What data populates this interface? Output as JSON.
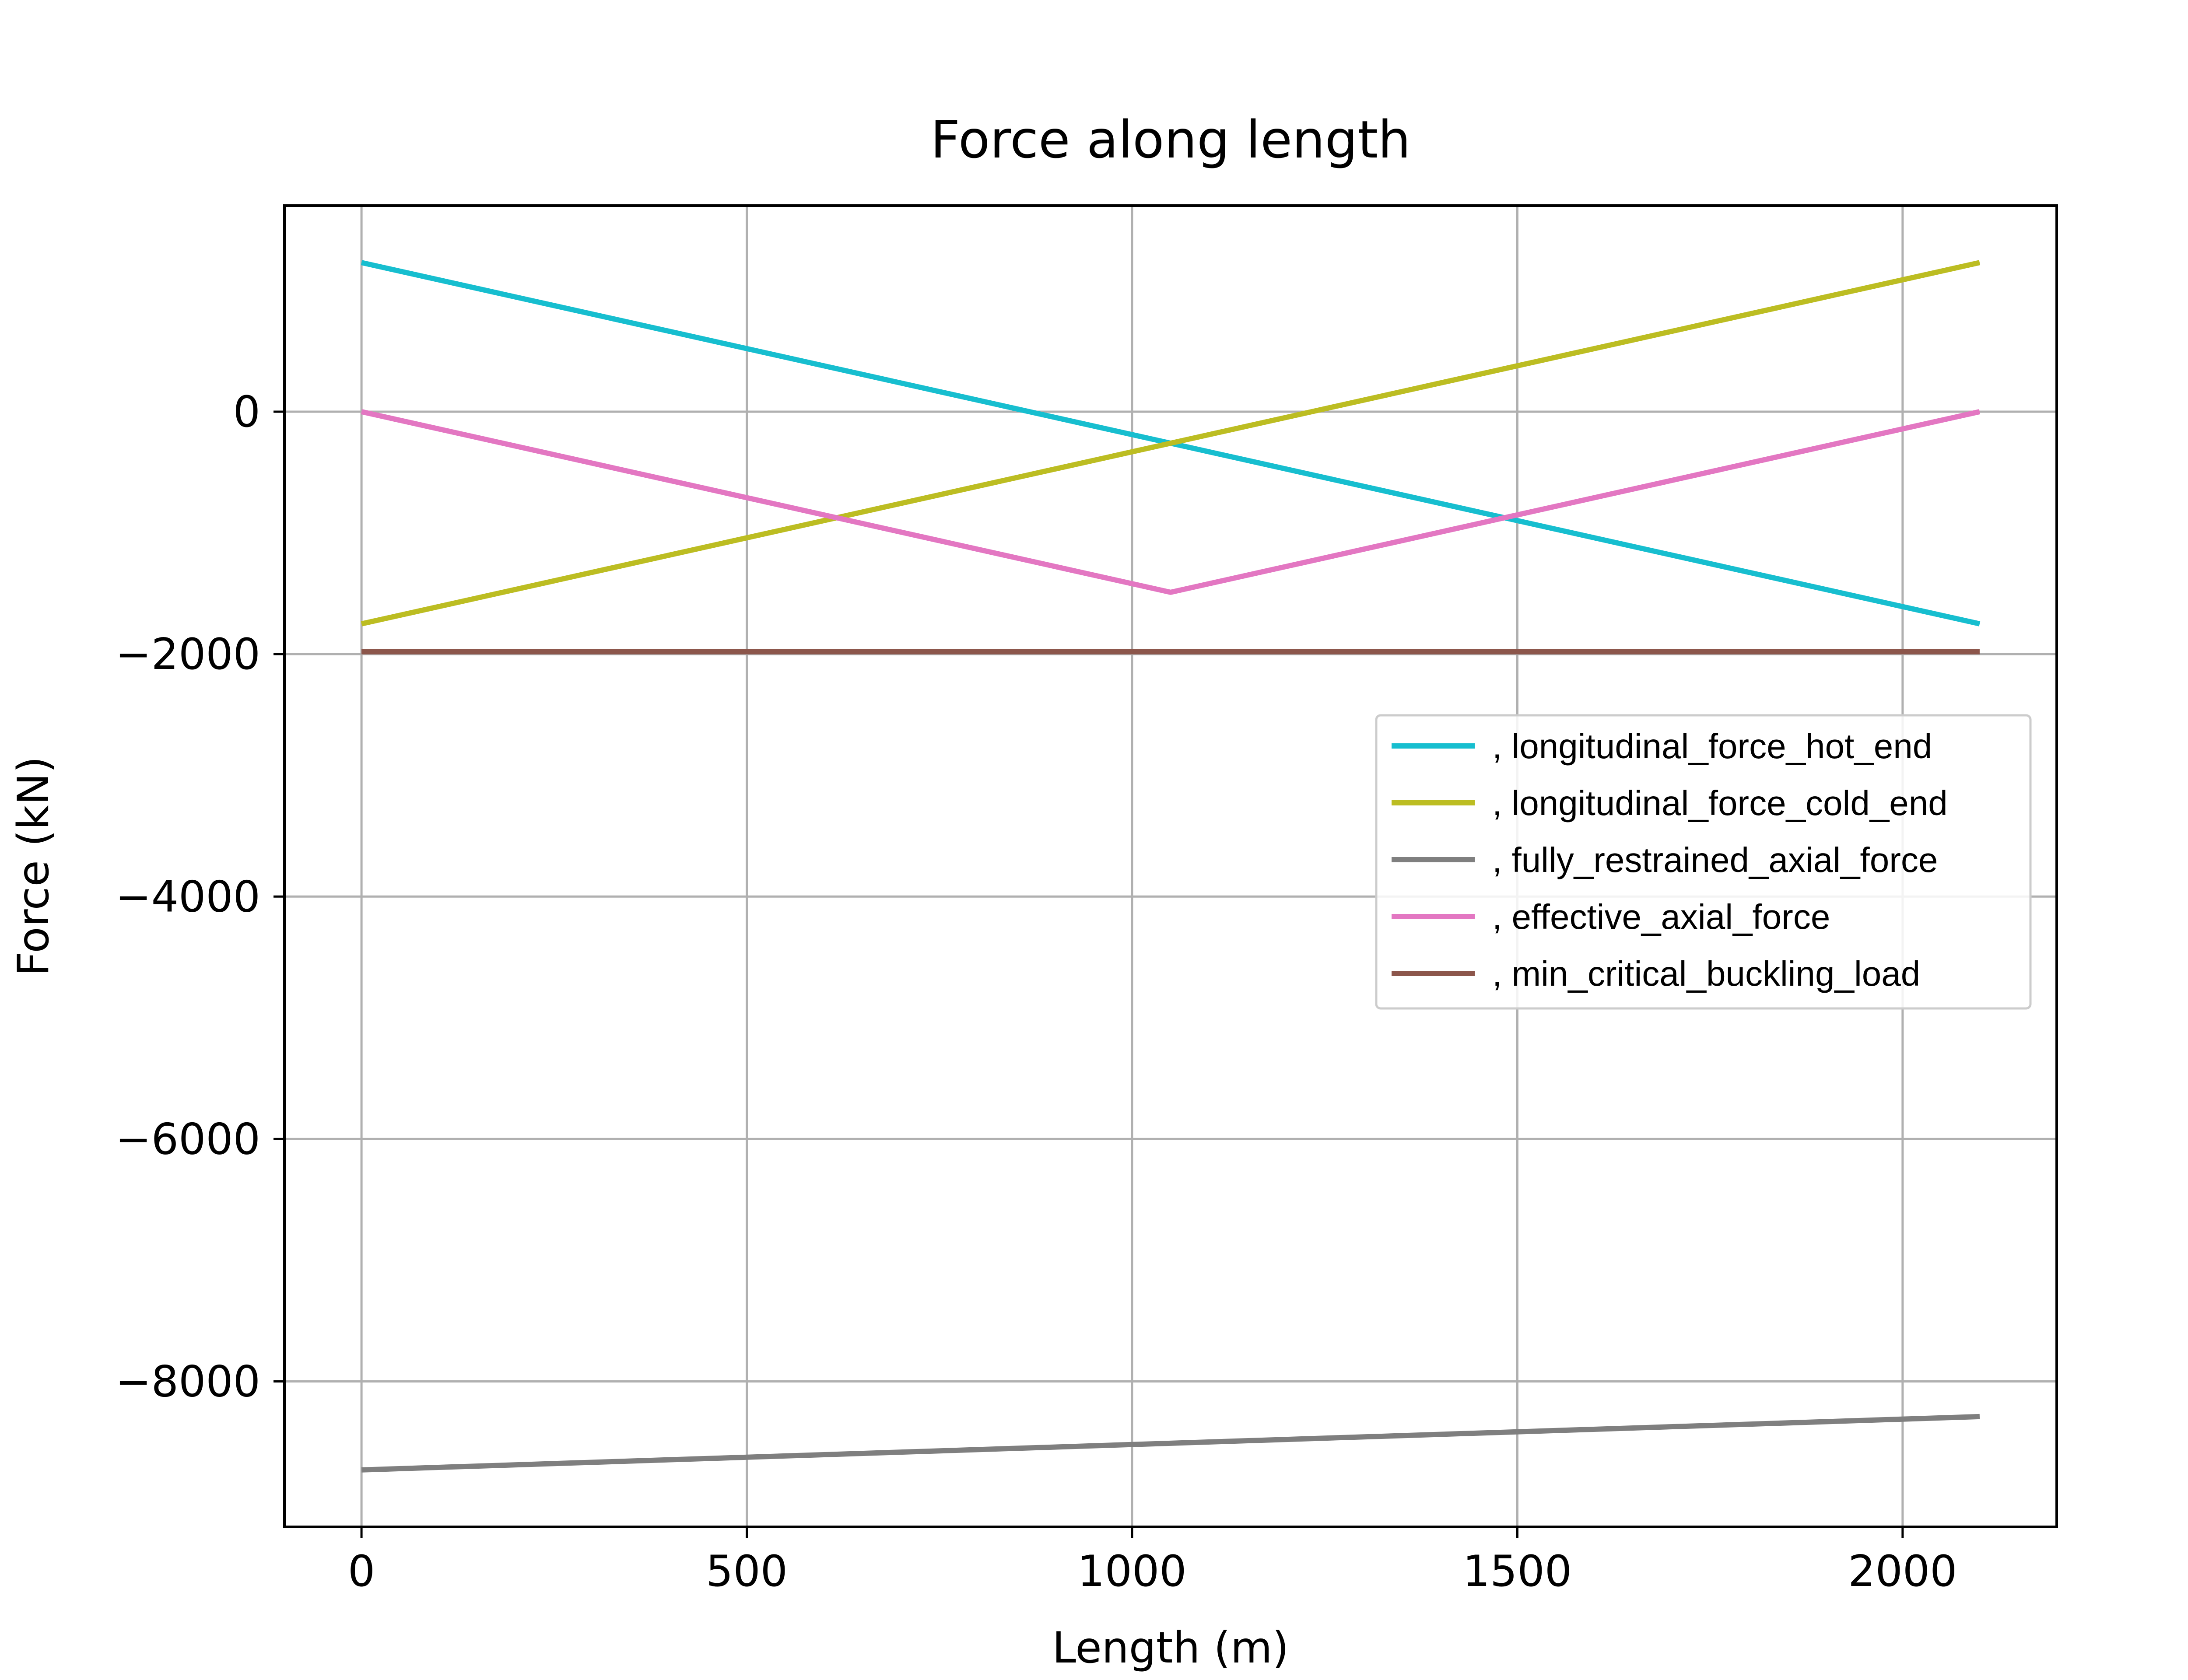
{
  "chart_data": {
    "type": "line",
    "title": "Force along length",
    "xlabel": "Length (m)",
    "ylabel": "Force (kN)",
    "xlim": [
      -100,
      2200
    ],
    "ylim": [
      -9200,
      1700
    ],
    "x_ticks": [
      0,
      500,
      1000,
      1500,
      2000
    ],
    "x_tick_labels": [
      "0",
      "500",
      "1000",
      "1500",
      "2000"
    ],
    "y_ticks": [
      0,
      -2000,
      -4000,
      -6000,
      -8000
    ],
    "y_tick_labels": [
      "0",
      "−2000",
      "−4000",
      "−6000",
      "−8000"
    ],
    "grid": true,
    "legend_position": "center-right",
    "series": [
      {
        "name": ", longitudinal_force_hot_end",
        "color": "#17becf",
        "x": [
          0,
          2100
        ],
        "y": [
          1230,
          -1750
        ]
      },
      {
        "name": ", longitudinal_force_cold_end",
        "color": "#bcbd22",
        "x": [
          0,
          2100
        ],
        "y": [
          -1750,
          1230
        ]
      },
      {
        "name": ", fully_restrained_axial_force",
        "color": "#7f7f7f",
        "x": [
          0,
          2100
        ],
        "y": [
          -8730,
          -8290
        ]
      },
      {
        "name": ", effective_axial_force",
        "color": "#e377c2",
        "x": [
          0,
          1050,
          2100
        ],
        "y": [
          0,
          -1490,
          0
        ]
      },
      {
        "name": ", min_critical_buckling_load",
        "color": "#8c564b",
        "x": [
          0,
          2100
        ],
        "y": [
          -1980,
          -1980
        ]
      }
    ]
  }
}
